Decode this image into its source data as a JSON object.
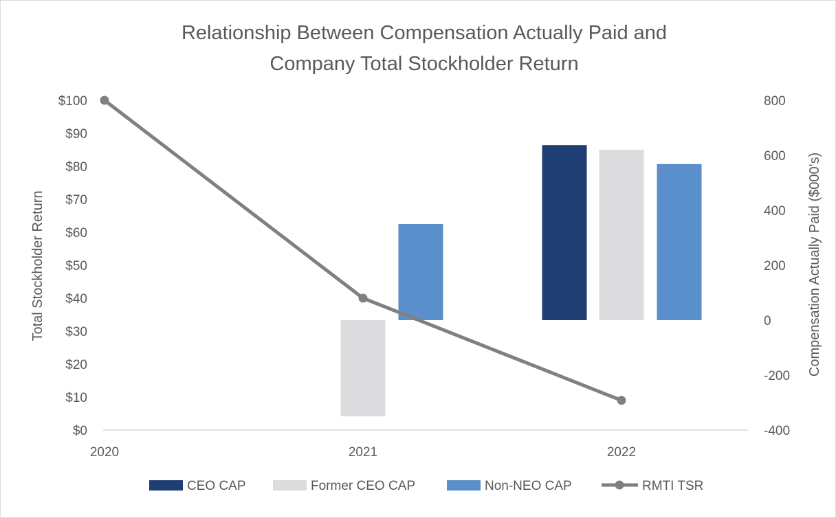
{
  "chart_data": {
    "type": "bar",
    "title": [
      "Relationship Between Compensation Actually Paid and",
      "Company Total Stockholder Return"
    ],
    "categories": [
      "2020",
      "2021",
      "2022"
    ],
    "y_left": {
      "label": "Total Stockholder Return",
      "min": 0,
      "max": 100,
      "step": 10,
      "ticks": [
        "$0",
        "$10",
        "$20",
        "$30",
        "$40",
        "$50",
        "$60",
        "$70",
        "$80",
        "$90",
        "$100"
      ]
    },
    "y_right": {
      "label": "Compensation Actually Paid ($000's)",
      "min": -400,
      "max": 800,
      "step": 200,
      "ticks": [
        "-400",
        "-200",
        "0",
        "200",
        "400",
        "600",
        "800"
      ]
    },
    "series": [
      {
        "name": "CEO CAP",
        "kind": "bar",
        "axis": "right",
        "color": "#1F3F74",
        "values": [
          null,
          null,
          637
        ]
      },
      {
        "name": "Former CEO CAP",
        "kind": "bar",
        "axis": "right",
        "color": "#DCDCDE",
        "values": [
          null,
          -350,
          620
        ]
      },
      {
        "name": "Non-NEO CAP",
        "kind": "bar",
        "axis": "right",
        "color": "#5B8FCB",
        "values": [
          null,
          350,
          568
        ]
      },
      {
        "name": "RMTI TSR",
        "kind": "line",
        "axis": "left",
        "color": "#808080",
        "values": [
          100,
          40,
          9
        ]
      }
    ],
    "legend_position": "bottom",
    "grid": false
  }
}
